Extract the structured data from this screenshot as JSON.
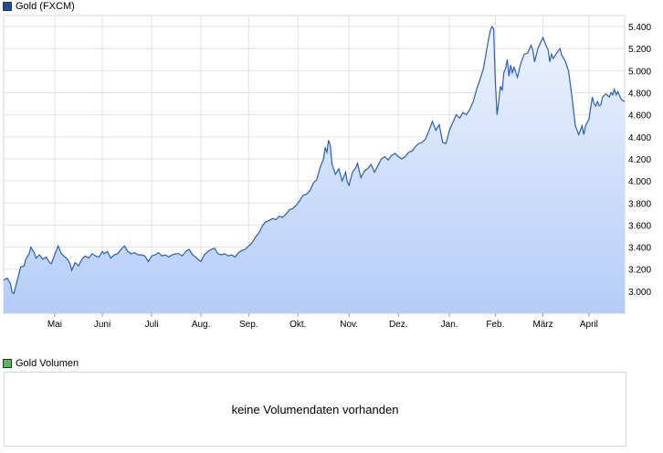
{
  "legend": {
    "price_label": "Gold (FXCM)",
    "price_color": "#1f4f99",
    "volume_label": "Gold Volumen",
    "volume_color": "#5cb85c"
  },
  "volume_panel": {
    "message": "keine Volumendaten vorhanden"
  },
  "chart_data": {
    "type": "area",
    "title": "Gold (FXCM)",
    "xlabel": "",
    "ylabel": "",
    "line_color": "#2a5fb0",
    "fill_top_color": "#eef3fd",
    "fill_bottom_color": "#b4cdf7",
    "grid": true,
    "ylim": [
      2800,
      5500
    ],
    "yticks": [
      3000,
      3200,
      3400,
      3600,
      3800,
      4000,
      4200,
      4400,
      4600,
      4800,
      5000,
      5200,
      5400
    ],
    "ytick_labels": [
      "3.000",
      "3.200",
      "3.400",
      "3.600",
      "3.800",
      "4.000",
      "4.200",
      "4.400",
      "4.600",
      "4.800",
      "5.000",
      "5.200",
      "5.400"
    ],
    "xlim": [
      0,
      365
    ],
    "xticks": [
      {
        "label": "Mai",
        "x": 30
      },
      {
        "label": "Juni",
        "x": 58
      },
      {
        "label": "Juli",
        "x": 87
      },
      {
        "label": "Aug.",
        "x": 116
      },
      {
        "label": "Sep.",
        "x": 144
      },
      {
        "label": "Okt.",
        "x": 173
      },
      {
        "label": "Nov.",
        "x": 203
      },
      {
        "label": "Dez.",
        "x": 232
      },
      {
        "label": "Jan.",
        "x": 262
      },
      {
        "label": "Feb.",
        "x": 289
      },
      {
        "label": "März",
        "x": 317
      },
      {
        "label": "April",
        "x": 344
      }
    ],
    "series": [
      {
        "name": "Gold (FXCM)",
        "points": [
          [
            0,
            3100
          ],
          [
            2,
            3120
          ],
          [
            4,
            3070
          ],
          [
            5,
            2990
          ],
          [
            6,
            2980
          ],
          [
            8,
            3100
          ],
          [
            10,
            3220
          ],
          [
            12,
            3230
          ],
          [
            13,
            3290
          ],
          [
            15,
            3340
          ],
          [
            16,
            3400
          ],
          [
            18,
            3350
          ],
          [
            19,
            3300
          ],
          [
            21,
            3330
          ],
          [
            23,
            3290
          ],
          [
            25,
            3310
          ],
          [
            27,
            3260
          ],
          [
            28,
            3250
          ],
          [
            30,
            3330
          ],
          [
            32,
            3410
          ],
          [
            34,
            3340
          ],
          [
            36,
            3310
          ],
          [
            37,
            3300
          ],
          [
            39,
            3250
          ],
          [
            40,
            3190
          ],
          [
            42,
            3260
          ],
          [
            44,
            3230
          ],
          [
            46,
            3290
          ],
          [
            48,
            3320
          ],
          [
            50,
            3300
          ],
          [
            52,
            3340
          ],
          [
            54,
            3320
          ],
          [
            56,
            3310
          ],
          [
            58,
            3360
          ],
          [
            59,
            3340
          ],
          [
            61,
            3360
          ],
          [
            63,
            3300
          ],
          [
            65,
            3330
          ],
          [
            67,
            3340
          ],
          [
            69,
            3380
          ],
          [
            71,
            3410
          ],
          [
            73,
            3360
          ],
          [
            75,
            3340
          ],
          [
            77,
            3350
          ],
          [
            79,
            3330
          ],
          [
            81,
            3330
          ],
          [
            83,
            3320
          ],
          [
            85,
            3270
          ],
          [
            87,
            3320
          ],
          [
            89,
            3330
          ],
          [
            91,
            3350
          ],
          [
            93,
            3320
          ],
          [
            95,
            3330
          ],
          [
            97,
            3310
          ],
          [
            99,
            3330
          ],
          [
            101,
            3340
          ],
          [
            103,
            3340
          ],
          [
            105,
            3320
          ],
          [
            107,
            3360
          ],
          [
            109,
            3380
          ],
          [
            111,
            3330
          ],
          [
            113,
            3310
          ],
          [
            114,
            3290
          ],
          [
            116,
            3270
          ],
          [
            118,
            3330
          ],
          [
            120,
            3360
          ],
          [
            122,
            3380
          ],
          [
            124,
            3390
          ],
          [
            126,
            3340
          ],
          [
            128,
            3330
          ],
          [
            130,
            3340
          ],
          [
            132,
            3320
          ],
          [
            134,
            3330
          ],
          [
            136,
            3310
          ],
          [
            138,
            3350
          ],
          [
            140,
            3370
          ],
          [
            142,
            3380
          ],
          [
            144,
            3410
          ],
          [
            146,
            3440
          ],
          [
            148,
            3490
          ],
          [
            150,
            3530
          ],
          [
            152,
            3590
          ],
          [
            154,
            3630
          ],
          [
            156,
            3640
          ],
          [
            158,
            3660
          ],
          [
            160,
            3650
          ],
          [
            162,
            3680
          ],
          [
            164,
            3670
          ],
          [
            166,
            3700
          ],
          [
            168,
            3740
          ],
          [
            170,
            3750
          ],
          [
            172,
            3780
          ],
          [
            174,
            3820
          ],
          [
            176,
            3870
          ],
          [
            178,
            3880
          ],
          [
            180,
            3910
          ],
          [
            182,
            3980
          ],
          [
            184,
            4010
          ],
          [
            186,
            4120
          ],
          [
            188,
            4200
          ],
          [
            189,
            4300
          ],
          [
            190,
            4260
          ],
          [
            191,
            4370
          ],
          [
            192,
            4320
          ],
          [
            193,
            4150
          ],
          [
            195,
            4060
          ],
          [
            197,
            4110
          ],
          [
            199,
            4000
          ],
          [
            201,
            4080
          ],
          [
            202,
            3990
          ],
          [
            203,
            3960
          ],
          [
            205,
            4080
          ],
          [
            207,
            4120
          ],
          [
            208,
            4160
          ],
          [
            210,
            4030
          ],
          [
            212,
            4090
          ],
          [
            214,
            4110
          ],
          [
            216,
            4150
          ],
          [
            218,
            4080
          ],
          [
            220,
            4140
          ],
          [
            222,
            4200
          ],
          [
            224,
            4220
          ],
          [
            226,
            4190
          ],
          [
            228,
            4230
          ],
          [
            230,
            4250
          ],
          [
            232,
            4220
          ],
          [
            234,
            4200
          ],
          [
            236,
            4220
          ],
          [
            238,
            4260
          ],
          [
            240,
            4270
          ],
          [
            242,
            4310
          ],
          [
            244,
            4340
          ],
          [
            246,
            4350
          ],
          [
            248,
            4380
          ],
          [
            250,
            4460
          ],
          [
            252,
            4540
          ],
          [
            254,
            4460
          ],
          [
            256,
            4510
          ],
          [
            258,
            4350
          ],
          [
            260,
            4340
          ],
          [
            262,
            4460
          ],
          [
            264,
            4530
          ],
          [
            266,
            4600
          ],
          [
            268,
            4570
          ],
          [
            270,
            4620
          ],
          [
            272,
            4600
          ],
          [
            274,
            4650
          ],
          [
            276,
            4720
          ],
          [
            278,
            4830
          ],
          [
            280,
            4920
          ],
          [
            282,
            5020
          ],
          [
            284,
            5200
          ],
          [
            286,
            5360
          ],
          [
            287,
            5400
          ],
          [
            288,
            5380
          ],
          [
            289,
            4900
          ],
          [
            290,
            4600
          ],
          [
            291,
            4720
          ],
          [
            292,
            4860
          ],
          [
            293,
            4820
          ],
          [
            294,
            4980
          ],
          [
            295,
            5020
          ],
          [
            296,
            5100
          ],
          [
            297,
            4950
          ],
          [
            298,
            5050
          ],
          [
            299,
            4980
          ],
          [
            300,
            5030
          ],
          [
            302,
            4940
          ],
          [
            304,
            5070
          ],
          [
            306,
            5150
          ],
          [
            308,
            5160
          ],
          [
            310,
            5230
          ],
          [
            311,
            5190
          ],
          [
            312,
            5080
          ],
          [
            314,
            5200
          ],
          [
            316,
            5270
          ],
          [
            317,
            5300
          ],
          [
            318,
            5260
          ],
          [
            319,
            5220
          ],
          [
            320,
            5190
          ],
          [
            321,
            5080
          ],
          [
            322,
            5150
          ],
          [
            323,
            5110
          ],
          [
            325,
            5160
          ],
          [
            327,
            5200
          ],
          [
            328,
            5140
          ],
          [
            330,
            5090
          ],
          [
            332,
            5000
          ],
          [
            334,
            4770
          ],
          [
            336,
            4500
          ],
          [
            338,
            4420
          ],
          [
            339,
            4460
          ],
          [
            340,
            4500
          ],
          [
            341,
            4420
          ],
          [
            342,
            4500
          ],
          [
            344,
            4560
          ],
          [
            346,
            4760
          ],
          [
            347,
            4700
          ],
          [
            348,
            4680
          ],
          [
            349,
            4720
          ],
          [
            350,
            4680
          ],
          [
            351,
            4690
          ],
          [
            352,
            4760
          ],
          [
            354,
            4790
          ],
          [
            356,
            4760
          ],
          [
            357,
            4800
          ],
          [
            358,
            4780
          ],
          [
            359,
            4830
          ],
          [
            360,
            4780
          ],
          [
            361,
            4810
          ],
          [
            363,
            4740
          ],
          [
            365,
            4720
          ]
        ]
      }
    ]
  }
}
